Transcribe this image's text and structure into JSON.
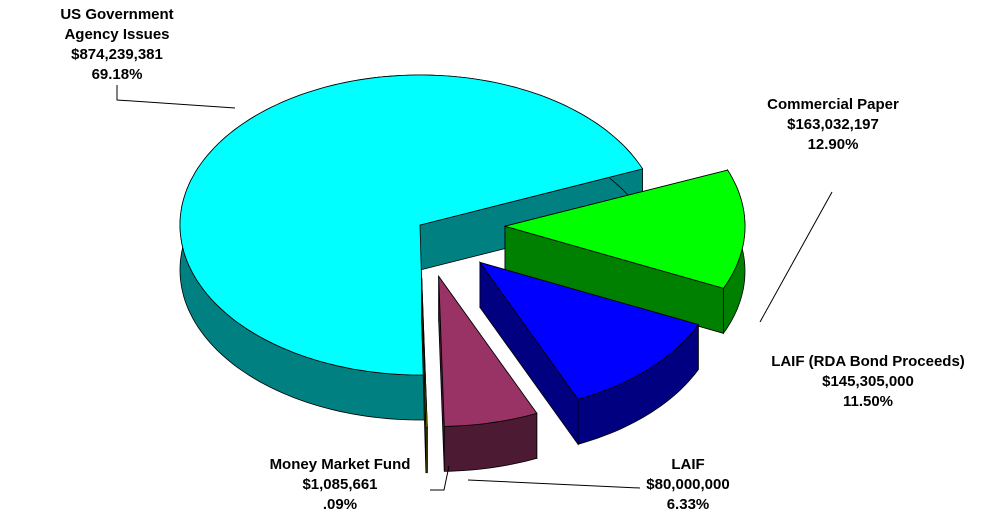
{
  "chart_data": {
    "type": "pie3d",
    "categories": [
      "US Government Agency Issues",
      "Commercial Paper",
      "LAIF (RDA Bond Proceeds)",
      "LAIF",
      "Money Market Fund"
    ],
    "amounts": [
      {
        "value": 874239381,
        "label": "$874,239,381"
      },
      {
        "value": 163032197,
        "label": "$163,032,197"
      },
      {
        "value": 145305000,
        "label": "$145,305,000"
      },
      {
        "value": 80000000,
        "label": "$80,000,000"
      },
      {
        "value": 1085661,
        "label": "$1,085,661"
      }
    ],
    "values": [
      69.18,
      12.9,
      11.5,
      6.33,
      0.09
    ],
    "value_labels": [
      "69.18%",
      "12.90%",
      "11.50%",
      "6.33%",
      ".09%"
    ],
    "colors": [
      "#00ffff",
      "#00ff00",
      "#0000ff",
      "#993366",
      "#999900"
    ]
  }
}
